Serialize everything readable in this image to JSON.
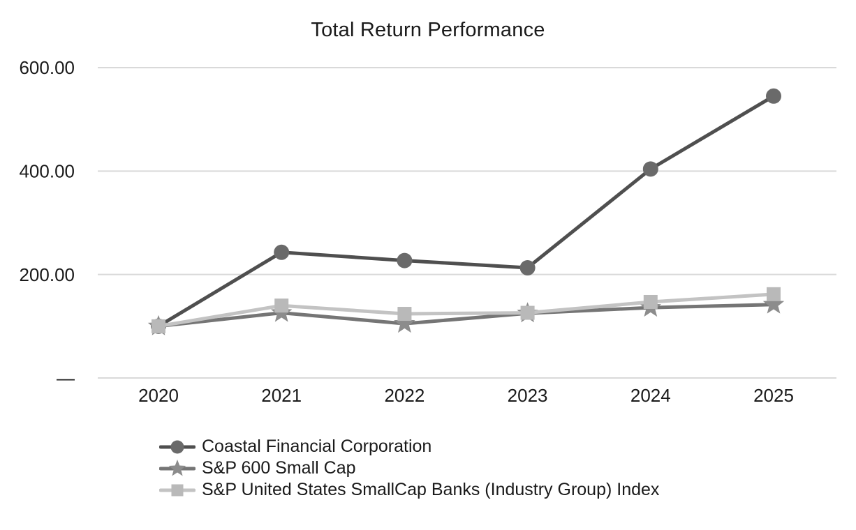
{
  "chart_data": {
    "type": "line",
    "title": "Total Return Performance",
    "categories": [
      "2020",
      "2021",
      "2022",
      "2023",
      "2024",
      "2025"
    ],
    "xlabel": "",
    "ylabel": "",
    "ylim": [
      0,
      600
    ],
    "grid": true,
    "legend_position": "bottom-left",
    "yticks": [
      {
        "value": 0,
        "label": "—"
      },
      {
        "value": 200,
        "label": "200.00"
      },
      {
        "value": 400,
        "label": "400.00"
      },
      {
        "value": 600,
        "label": "600.00"
      }
    ],
    "series": [
      {
        "name": "Coastal Financial Corporation",
        "marker": "circle",
        "line_color": "#4f4f4f",
        "marker_color": "#6a6a6a",
        "values": [
          100,
          243,
          227,
          213,
          404,
          545
        ]
      },
      {
        "name": "S&P 600 Small Cap",
        "marker": "star",
        "line_color": "#757575",
        "marker_color": "#8c8c8c",
        "values": [
          100,
          126,
          105,
          125,
          136,
          142
        ]
      },
      {
        "name": "S&P United States SmallCap Banks (Industry Group) Index",
        "marker": "square",
        "line_color": "#c3c3c3",
        "marker_color": "#b9b9b9",
        "values": [
          100,
          140,
          124,
          126,
          147,
          162
        ]
      }
    ],
    "colors": {
      "grid": "#d9d9d9",
      "text": "#1a1a1a",
      "background": "#ffffff"
    }
  }
}
